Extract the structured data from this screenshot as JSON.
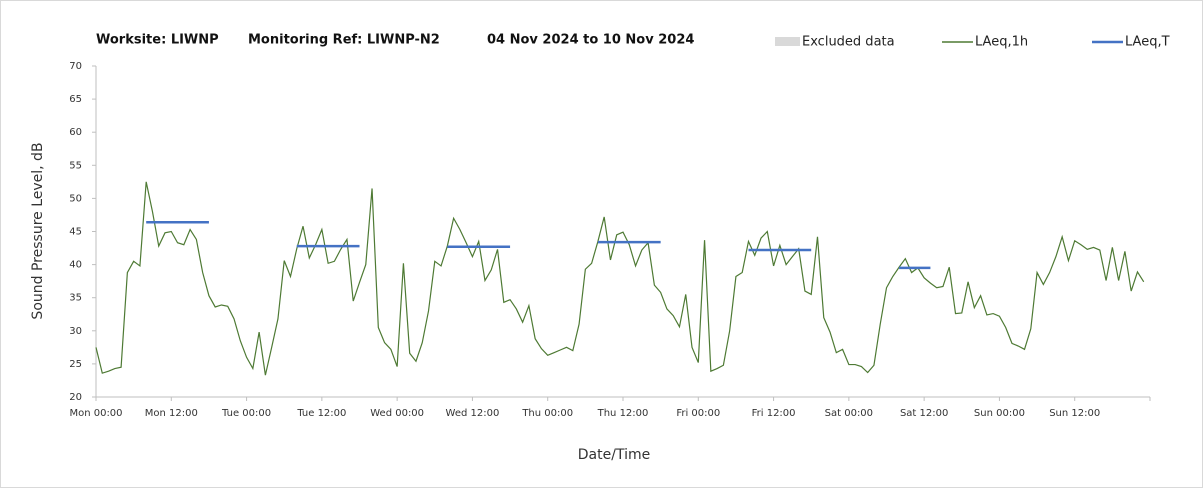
{
  "chart_data": {
    "type": "line",
    "title_parts": [
      "Worksite: LIWNP",
      "Monitoring Ref: LIWNP-N2",
      "04 Nov 2024 to 10 Nov 2024"
    ],
    "xlabel": "Date/Time",
    "ylabel": "Sound Pressure Level, dB",
    "xlim": [
      0,
      168
    ],
    "ylim": [
      20,
      70
    ],
    "xticks": [
      {
        "value": 0,
        "label": "Mon 00:00"
      },
      {
        "value": 12,
        "label": "Mon 12:00"
      },
      {
        "value": 24,
        "label": "Tue 00:00"
      },
      {
        "value": 36,
        "label": "Tue 12:00"
      },
      {
        "value": 48,
        "label": "Wed 00:00"
      },
      {
        "value": 60,
        "label": "Wed 12:00"
      },
      {
        "value": 72,
        "label": "Thu 00:00"
      },
      {
        "value": 84,
        "label": "Thu 12:00"
      },
      {
        "value": 96,
        "label": "Fri 00:00"
      },
      {
        "value": 108,
        "label": "Fri 12:00"
      },
      {
        "value": 120,
        "label": "Sat 00:00"
      },
      {
        "value": 132,
        "label": "Sat 12:00"
      },
      {
        "value": 144,
        "label": "Sun 00:00"
      },
      {
        "value": 156,
        "label": "Sun 12:00"
      },
      {
        "value": 168,
        "label": ""
      }
    ],
    "yticks": [
      20,
      25,
      30,
      35,
      40,
      45,
      50,
      55,
      60,
      65,
      70
    ],
    "grid": false,
    "legend_extra": [
      {
        "name": "Excluded data",
        "color": "#d9d9d9"
      }
    ],
    "series": [
      {
        "name": "LAeq,1h",
        "color": "#4e7a34",
        "x": [
          0,
          1,
          2,
          3,
          4,
          5,
          6,
          7,
          8,
          9,
          10,
          11,
          12,
          13,
          14,
          15,
          16,
          17,
          18,
          19,
          20,
          21,
          22,
          23,
          24,
          25,
          26,
          27,
          28,
          29,
          30,
          31,
          32,
          33,
          34,
          35,
          36,
          37,
          38,
          39,
          40,
          41,
          42,
          43,
          44,
          45,
          46,
          47,
          48,
          49,
          50,
          51,
          52,
          53,
          54,
          55,
          56,
          57,
          58,
          59,
          60,
          61,
          62,
          63,
          64,
          65,
          66,
          67,
          68,
          69,
          70,
          71,
          72,
          73,
          74,
          75,
          76,
          77,
          78,
          79,
          80,
          81,
          82,
          83,
          84,
          85,
          86,
          87,
          88,
          89,
          90,
          91,
          92,
          93,
          94,
          95,
          96,
          97,
          98,
          99,
          100,
          101,
          102,
          103,
          104,
          105,
          106,
          107,
          108,
          109,
          110,
          111,
          112,
          113,
          114,
          115,
          116,
          117,
          118,
          119,
          120,
          121,
          122,
          123,
          124,
          125,
          126,
          127,
          128,
          129,
          130,
          131,
          132,
          133,
          134,
          135,
          136,
          137,
          138,
          139,
          140,
          141,
          142,
          143,
          144,
          145,
          146,
          147,
          148,
          149,
          150,
          151,
          152,
          153,
          154,
          155,
          156,
          157,
          158,
          159,
          160,
          161,
          162,
          163,
          164,
          165,
          166,
          167
        ],
        "values": [
          27.5,
          23.6,
          23.9,
          24.3,
          24.5,
          38.8,
          40.5,
          39.8,
          52.5,
          48,
          42.8,
          44.8,
          45,
          43.3,
          43,
          45.3,
          43.8,
          38.8,
          35.3,
          33.6,
          33.9,
          33.7,
          31.8,
          28.5,
          26,
          24.3,
          29.8,
          23.3,
          27.5,
          31.8,
          40.6,
          38.2,
          42.4,
          45.8,
          41,
          43,
          45.3,
          40.2,
          40.5,
          42.3,
          43.8,
          34.5,
          37.3,
          40,
          51.5,
          30.5,
          28.2,
          27.2,
          24.6,
          40.2,
          26.6,
          25.4,
          28.2,
          33,
          40.5,
          39.8,
          42.8,
          47,
          45.3,
          43.3,
          41.2,
          43.5,
          37.6,
          39.2,
          42.3,
          34.3,
          34.7,
          33.3,
          31.3,
          33.8,
          28.8,
          27.3,
          26.3,
          26.7,
          27.1,
          27.5,
          27,
          31,
          39.3,
          40.2,
          43.5,
          47.2,
          40.7,
          44.5,
          44.9,
          43,
          39.8,
          42.2,
          43.3,
          36.9,
          35.8,
          33.3,
          32.3,
          30.6,
          35.5,
          27.5,
          25.2,
          43.7,
          23.9,
          24.3,
          24.8,
          30,
          38.2,
          38.8,
          43.5,
          41.4,
          44,
          45,
          39.8,
          42.9,
          40,
          41.2,
          42.4,
          36,
          35.5,
          44.2,
          32,
          29.8,
          26.7,
          27.2,
          24.9,
          24.9,
          24.6,
          23.7,
          24.8,
          31,
          36.5,
          38.2,
          39.6,
          40.9,
          38.8,
          39.5,
          38,
          37.2,
          36.5,
          36.7,
          39.6,
          32.6,
          32.7,
          37.4,
          33.5,
          35.3,
          32.4,
          32.6,
          32.2,
          30.5,
          28.1,
          27.7,
          27.2,
          30.3,
          38.8,
          37,
          38.8,
          41.2,
          44.2,
          40.6,
          43.6,
          43,
          42.3,
          42.6,
          42.2,
          37.6,
          42.6,
          37.6,
          42,
          36,
          38.9,
          37.4
        ]
      },
      {
        "name": "LAeq,T",
        "color": "#4472c4",
        "x": [
          8,
          18,
          null,
          32,
          42,
          null,
          56,
          66,
          null,
          80,
          90,
          null,
          104,
          114,
          null,
          128,
          133
        ],
        "values": [
          46.4,
          46.4,
          null,
          42.8,
          42.8,
          null,
          42.7,
          42.7,
          null,
          43.4,
          43.4,
          null,
          42.2,
          42.2,
          null,
          39.5,
          39.5
        ]
      }
    ]
  }
}
